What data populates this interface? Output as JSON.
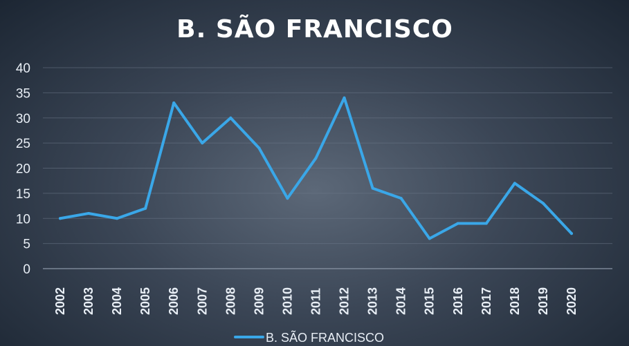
{
  "chart_data": {
    "type": "line",
    "title": "B. SÃO FRANCISCO",
    "xlabel": "",
    "ylabel": "",
    "categories": [
      "2002",
      "2003",
      "2004",
      "2005",
      "2006",
      "2007",
      "2008",
      "2009",
      "2010",
      "2011",
      "2012",
      "2013",
      "2014",
      "2015",
      "2016",
      "2017",
      "2018",
      "2019",
      "2020"
    ],
    "series": [
      {
        "name": "B. SÃO FRANCISCO",
        "color": "#3aa7e8",
        "values": [
          10,
          11,
          10,
          12,
          33,
          25,
          30,
          24,
          14,
          22,
          34,
          16,
          14,
          6,
          9,
          9,
          17,
          13,
          7
        ]
      }
    ],
    "ylim": [
      0,
      40
    ],
    "yticks": [
      0,
      5,
      10,
      15,
      20,
      25,
      30,
      35,
      40
    ],
    "grid": true,
    "legend": "bottom"
  }
}
